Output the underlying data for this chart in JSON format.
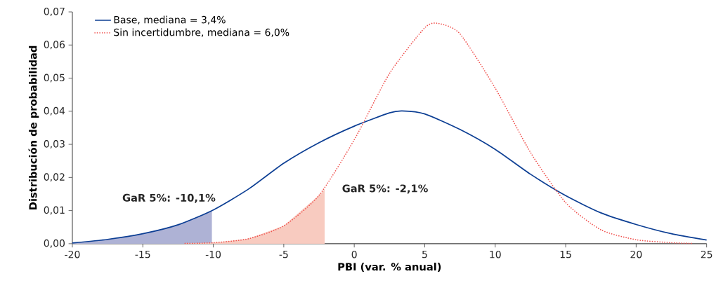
{
  "chart_data": {
    "type": "line",
    "xlabel": "PBI (var. % anual)",
    "ylabel": "Distribución de probabilidad",
    "xlim": [
      -20,
      25
    ],
    "xticks": [
      -20,
      -15,
      -10,
      -5,
      0,
      5,
      10,
      15,
      20,
      25
    ],
    "ylim": [
      0,
      0.07
    ],
    "yticks": [
      {
        "value": 0,
        "label": "0,00"
      },
      {
        "value": 0.01,
        "label": "0,01"
      },
      {
        "value": 0.02,
        "label": "0,02"
      },
      {
        "value": 0.03,
        "label": "0,03"
      },
      {
        "value": 0.04,
        "label": "0,04"
      },
      {
        "value": 0.05,
        "label": "0,05"
      },
      {
        "value": 0.06,
        "label": "0,06"
      },
      {
        "value": 0.07,
        "label": "0,07"
      }
    ],
    "grid": false,
    "legend": "top left",
    "marker": "none",
    "series": [
      {
        "name": "Base, mediana = 3,4%",
        "color": "#0d3f94",
        "line_style": "solid",
        "x": [
          -20,
          -17.5,
          -15,
          -12.5,
          -10,
          -7.5,
          -5,
          -2.5,
          0,
          2.5,
          3.4,
          5,
          7.5,
          10,
          12.5,
          15,
          17.5,
          20,
          22.5,
          25
        ],
        "values": [
          0.0002,
          0.0013,
          0.003,
          0.0057,
          0.0102,
          0.0165,
          0.0243,
          0.0305,
          0.0355,
          0.0395,
          0.0401,
          0.0392,
          0.0345,
          0.0285,
          0.021,
          0.0145,
          0.0093,
          0.0058,
          0.003,
          0.0011
        ]
      },
      {
        "name": "Sin incertidumbre, mediana = 6,0%",
        "color": "#f0524f",
        "line_style": "dotted",
        "x": [
          -12,
          -10,
          -7.5,
          -5,
          -2.5,
          0,
          2.5,
          5,
          6,
          7.5,
          10,
          12.5,
          15,
          17.5,
          20,
          22.5,
          24
        ],
        "values": [
          0.0001,
          0.0003,
          0.0015,
          0.0054,
          0.0146,
          0.0314,
          0.0514,
          0.0652,
          0.0665,
          0.0634,
          0.047,
          0.0276,
          0.0124,
          0.0042,
          0.0012,
          0.0003,
          0.0001
        ]
      },
      {
        "type": "area",
        "color": "#aeb2d5",
        "x": [
          -20,
          -17.5,
          -15,
          -12.5,
          -10.1
        ],
        "values": [
          0.0002,
          0.0013,
          0.003,
          0.0057,
          0.0099
        ]
      },
      {
        "type": "area",
        "color": "#f8cbc0",
        "x": [
          -12,
          -10,
          -7.5,
          -5,
          -2.5,
          -2.1
        ],
        "values": [
          0.0001,
          0.0003,
          0.0015,
          0.0054,
          0.0146,
          0.0165
        ]
      }
    ],
    "annotations": [
      {
        "text": "GaR 5%: -10,1%",
        "x": -10.1,
        "y": 0.0099
      },
      {
        "text": "GaR 5%: -2,1%",
        "x": -2.1,
        "y": 0.0165
      }
    ]
  }
}
